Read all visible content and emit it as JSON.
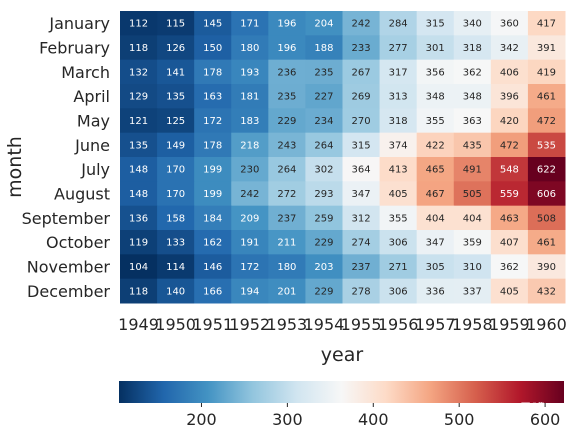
{
  "chart_data": {
    "type": "heatmap",
    "xlabel": "year",
    "ylabel": "month",
    "x": [
      "1949",
      "1950",
      "1951",
      "1952",
      "1953",
      "1954",
      "1955",
      "1956",
      "1957",
      "1958",
      "1959",
      "1960"
    ],
    "y": [
      "January",
      "February",
      "March",
      "April",
      "May",
      "June",
      "July",
      "August",
      "September",
      "October",
      "November",
      "December"
    ],
    "values": [
      [
        112,
        115,
        145,
        171,
        196,
        204,
        242,
        284,
        315,
        340,
        360,
        417
      ],
      [
        118,
        126,
        150,
        180,
        196,
        188,
        233,
        277,
        301,
        318,
        342,
        391
      ],
      [
        132,
        141,
        178,
        193,
        236,
        235,
        267,
        317,
        356,
        362,
        406,
        419
      ],
      [
        129,
        135,
        163,
        181,
        235,
        227,
        269,
        313,
        348,
        348,
        396,
        461
      ],
      [
        121,
        125,
        172,
        183,
        229,
        234,
        270,
        318,
        355,
        363,
        420,
        472
      ],
      [
        135,
        149,
        178,
        218,
        243,
        264,
        315,
        374,
        422,
        435,
        472,
        535
      ],
      [
        148,
        170,
        199,
        230,
        264,
        302,
        364,
        413,
        465,
        491,
        548,
        622
      ],
      [
        148,
        170,
        199,
        242,
        272,
        293,
        347,
        405,
        467,
        505,
        559,
        606
      ],
      [
        136,
        158,
        184,
        209,
        237,
        259,
        312,
        355,
        404,
        404,
        463,
        508
      ],
      [
        119,
        133,
        162,
        191,
        211,
        229,
        274,
        306,
        347,
        359,
        407,
        461
      ],
      [
        104,
        114,
        146,
        172,
        180,
        203,
        237,
        271,
        305,
        310,
        362,
        390
      ],
      [
        118,
        140,
        166,
        194,
        201,
        229,
        278,
        306,
        336,
        337,
        405,
        432
      ]
    ],
    "vmin": 104,
    "vmax": 622,
    "colormap": "RdBu_r",
    "annotations": true,
    "colorbar": {
      "orientation": "horizontal",
      "position": "bottom",
      "ticks": [
        200,
        300,
        400,
        500,
        600
      ]
    }
  },
  "watermark": "易哦"
}
